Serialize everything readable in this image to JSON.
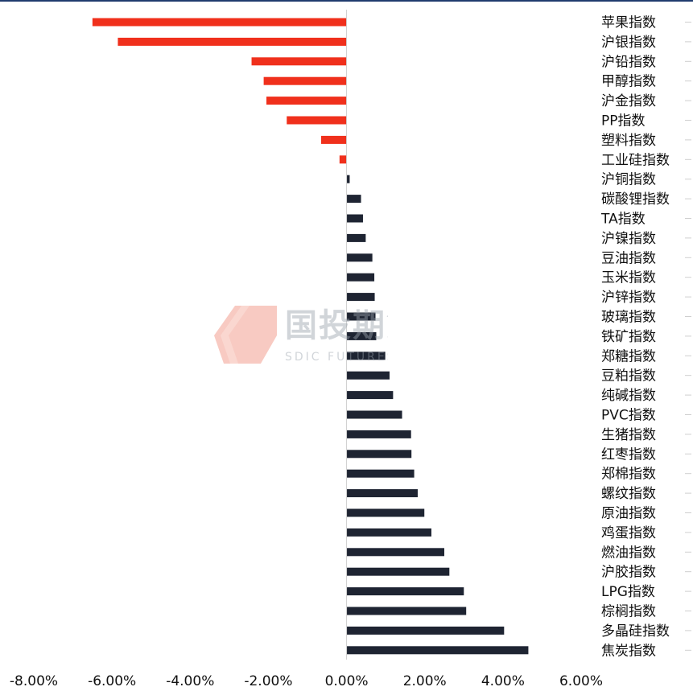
{
  "chart_data": {
    "type": "bar",
    "orientation": "horizontal",
    "categories": [
      "苹果指数",
      "沪银指数",
      "沪铅指数",
      "甲醇指数",
      "沪金指数",
      "PP指数",
      "塑料指数",
      "工业硅指数",
      "沪铜指数",
      "碳酸锂指数",
      "TA指数",
      "沪镍指数",
      "豆油指数",
      "玉米指数",
      "沪锌指数",
      "玻璃指数",
      "铁矿指数",
      "郑糖指数",
      "豆粕指数",
      "纯碱指数",
      "PVC指数",
      "生猪指数",
      "红枣指数",
      "郑棉指数",
      "螺纹指数",
      "原油指数",
      "鸡蛋指数",
      "燃油指数",
      "沪胶指数",
      "LPG指数",
      "棕榈指数",
      "多晶硅指数",
      "焦炭指数"
    ],
    "values": [
      -6.5,
      -5.85,
      -2.43,
      -2.12,
      -2.05,
      -1.53,
      -0.65,
      -0.18,
      0.08,
      0.37,
      0.42,
      0.49,
      0.66,
      0.71,
      0.72,
      0.74,
      0.76,
      0.99,
      1.1,
      1.19,
      1.42,
      1.65,
      1.66,
      1.73,
      1.82,
      1.99,
      2.17,
      2.5,
      2.63,
      3.0,
      3.06,
      4.03,
      4.65
    ],
    "xlim": [
      -8,
      6
    ],
    "xticks": [
      -8,
      -6,
      -4,
      -2,
      0,
      2,
      4,
      6
    ],
    "xtick_labels": [
      "-8.00%",
      "-6.00%",
      "-4.00%",
      "-2.00%",
      "0.00%",
      "2.00%",
      "4.00%",
      "6.00%"
    ],
    "colors": {
      "negative": "#f0301c",
      "positive": "#1e2432",
      "axis": "#cfcfcf"
    },
    "grid": false
  },
  "watermark": {
    "cn": "国投期货",
    "en": "SDIC FUTURES"
  }
}
